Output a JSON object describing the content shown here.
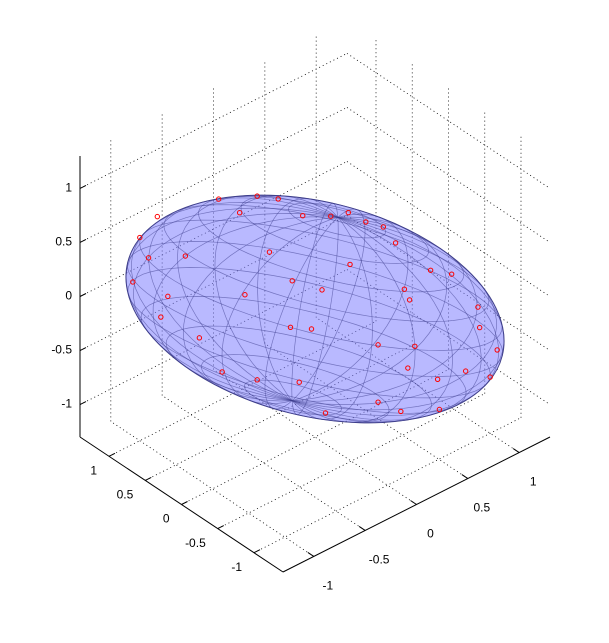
{
  "chart_data": {
    "type": "scatter3d",
    "color": "#ff0000",
    "grid": true,
    "xlim": [
      -1.3,
      1.3
    ],
    "ylim": [
      -1.4,
      1.4
    ],
    "zlim": [
      -1.3,
      1.3
    ],
    "xticks": [
      -1,
      -0.5,
      0,
      0.5,
      1
    ],
    "yticks": [
      -1,
      -0.5,
      0,
      0.5,
      1
    ],
    "zticks": [
      -1,
      -0.5,
      0,
      0.5,
      1
    ],
    "x": [
      -0.9,
      -1.0,
      -0.95,
      -1.04,
      -0.88,
      -0.84,
      -0.74,
      -0.66,
      -0.53,
      -0.55,
      -0.43,
      -0.33,
      -0.21,
      -0.07,
      0.09,
      0.19,
      0.29,
      0.39,
      0.46,
      0.66,
      0.78,
      0.93,
      1.04,
      1.0,
      0.86,
      0.71,
      0.49,
      0.36,
      0.06,
      -0.09,
      -0.33,
      -0.14,
      -0.02,
      0.2,
      0.04,
      -0.26,
      -0.4,
      -0.13,
      0.51,
      0.57,
      0.36,
      0.53,
      0.7,
      0.94,
      0.54
    ],
    "y": [
      0.9,
      1.0,
      0.95,
      1.04,
      0.88,
      0.84,
      0.74,
      0.66,
      0.53,
      0.55,
      0.43,
      0.33,
      0.21,
      0.07,
      -0.09,
      -0.19,
      -0.29,
      -0.39,
      -0.46,
      -0.66,
      -0.78,
      -0.93,
      -1.04,
      -1.0,
      -0.86,
      -0.71,
      -0.49,
      -0.36,
      -0.06,
      0.09,
      0.33,
      0.14,
      0.02,
      -0.2,
      -0.04,
      0.26,
      0.4,
      0.13,
      -0.51,
      -0.57,
      -0.36,
      -0.53,
      -0.7,
      -0.94,
      -0.54
    ],
    "z": [
      0.77,
      0.58,
      0.39,
      0.17,
      -0.16,
      0.03,
      0.4,
      -0.36,
      -0.68,
      0.92,
      0.79,
      0.94,
      0.91,
      0.75,
      0.74,
      0.77,
      0.68,
      0.63,
      0.48,
      0.22,
      0.18,
      -0.13,
      -0.53,
      -0.78,
      -0.72,
      -1.07,
      -1.08,
      -0.99,
      -1.08,
      -0.79,
      -0.76,
      -0.28,
      -0.3,
      0.29,
      0.06,
      0.42,
      0.03,
      0.15,
      0.05,
      -0.48,
      -0.46,
      -0.68,
      -0.79,
      -0.32,
      -0.05
    ]
  }
}
